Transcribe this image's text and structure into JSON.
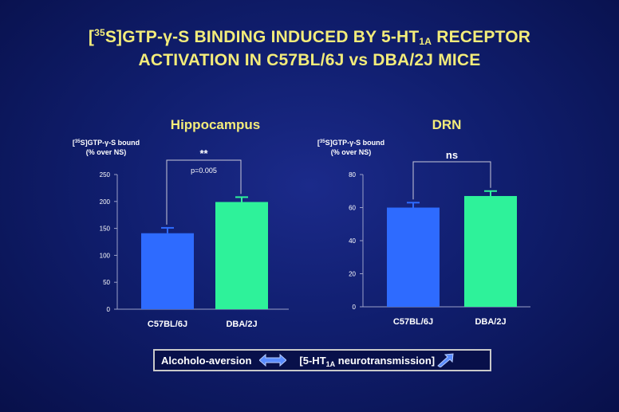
{
  "title": {
    "prefix": "[",
    "sup": "35",
    "line1_mid": "S]GTP-γ-S BINDING INDUCED BY 5-HT",
    "line1_sub": "1A",
    "line1_end": " RECEPTOR",
    "line2": "ACTIVATION IN C57BL/6J vs DBA/2J MICE"
  },
  "chart_data": [
    {
      "type": "bar",
      "title": "Hippocampus",
      "ylabel_bracket_open": "[",
      "ylabel_sup": "35",
      "ylabel_line1": "S]GTP-γ-S bound",
      "ylabel_line2": "(% over NS)",
      "categories": [
        "C57BL/6J",
        "DBA/2J"
      ],
      "values": [
        141,
        199
      ],
      "errors": [
        10,
        9
      ],
      "colors": [
        "#2e6bff",
        "#2ef29a"
      ],
      "ylim": [
        0,
        250
      ],
      "yticks": [
        0,
        50,
        100,
        150,
        200,
        250
      ],
      "significance": "**",
      "pvalue": "p=0.005",
      "grid": false
    },
    {
      "type": "bar",
      "title": "DRN",
      "ylabel_bracket_open": "[",
      "ylabel_sup": "35",
      "ylabel_line1": "S]GTP-γ-S bound",
      "ylabel_line2": "(% over NS)",
      "categories": [
        "C57BL/6J",
        "DBA/2J"
      ],
      "values": [
        60,
        67
      ],
      "errors": [
        3,
        3
      ],
      "colors": [
        "#2e6bff",
        "#2ef29a"
      ],
      "ylim": [
        0,
        80
      ],
      "yticks": [
        0,
        20,
        40,
        60,
        80
      ],
      "significance": "ns",
      "pvalue": "",
      "grid": false
    }
  ],
  "footer": {
    "left": "Alcoholo-aversion",
    "right_pre": "[5-HT",
    "right_sub": "1A",
    "right_post": " neurotransmission]",
    "arrow_color": "#5a8cff"
  }
}
